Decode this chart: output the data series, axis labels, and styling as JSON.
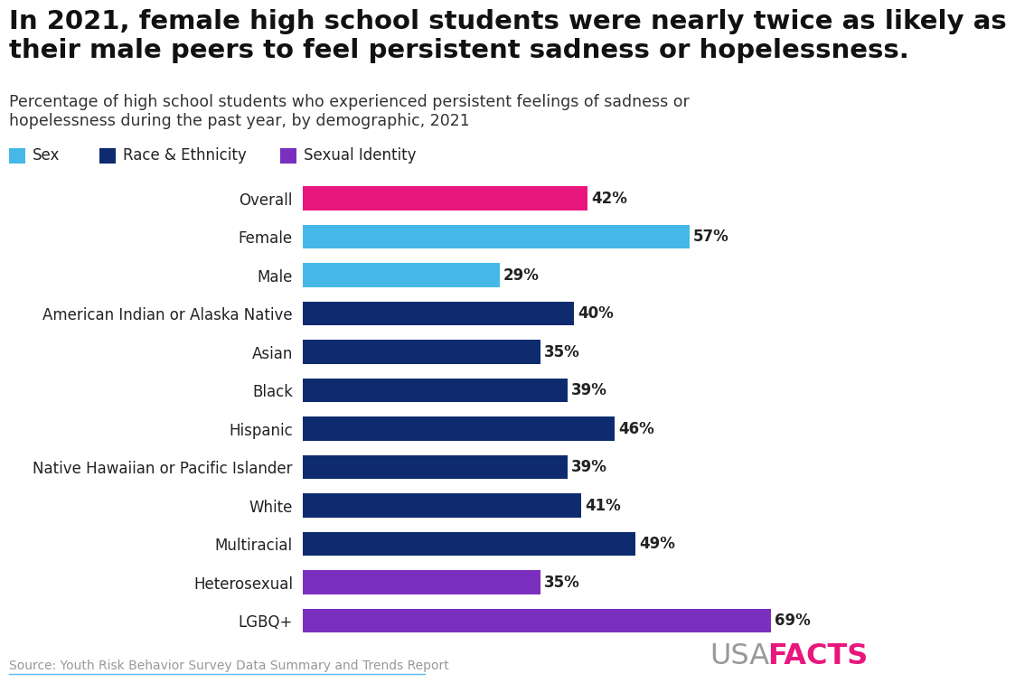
{
  "title_line1": "In 2021, female high school students were nearly twice as likely as",
  "title_line2": "their male peers to feel persistent sadness or hopelessness.",
  "subtitle": "Percentage of high school students who experienced persistent feelings of sadness or\nhopelessness during the past year, by demographic, 2021",
  "categories": [
    "Overall",
    "Female",
    "Male",
    "American Indian or Alaska Native",
    "Asian",
    "Black",
    "Hispanic",
    "Native Hawaiian or Pacific Islander",
    "White",
    "Multiracial",
    "Heterosexual",
    "LGBQ+"
  ],
  "values": [
    42,
    57,
    29,
    40,
    35,
    39,
    46,
    39,
    41,
    49,
    35,
    69
  ],
  "colors": [
    "#e8177d",
    "#45b8e8",
    "#45b8e8",
    "#0d2b6e",
    "#0d2b6e",
    "#0d2b6e",
    "#0d2b6e",
    "#0d2b6e",
    "#0d2b6e",
    "#0d2b6e",
    "#7b2fbe",
    "#7b2fbe"
  ],
  "legend_items": [
    {
      "label": "Sex",
      "color": "#45b8e8"
    },
    {
      "label": "Race & Ethnicity",
      "color": "#0d2b6e"
    },
    {
      "label": "Sexual Identity",
      "color": "#7b2fbe"
    }
  ],
  "source_text": "Source: Youth Risk Behavior Survey Data Summary and Trends Report",
  "usa_text": "USA",
  "facts_text": "FACTS",
  "usa_color": "#999999",
  "facts_color": "#e8177d",
  "background_color": "#ffffff",
  "bar_label_fontsize": 12,
  "category_fontsize": 12,
  "title_fontsize": 21,
  "subtitle_fontsize": 12.5,
  "xlim": [
    0,
    80
  ]
}
